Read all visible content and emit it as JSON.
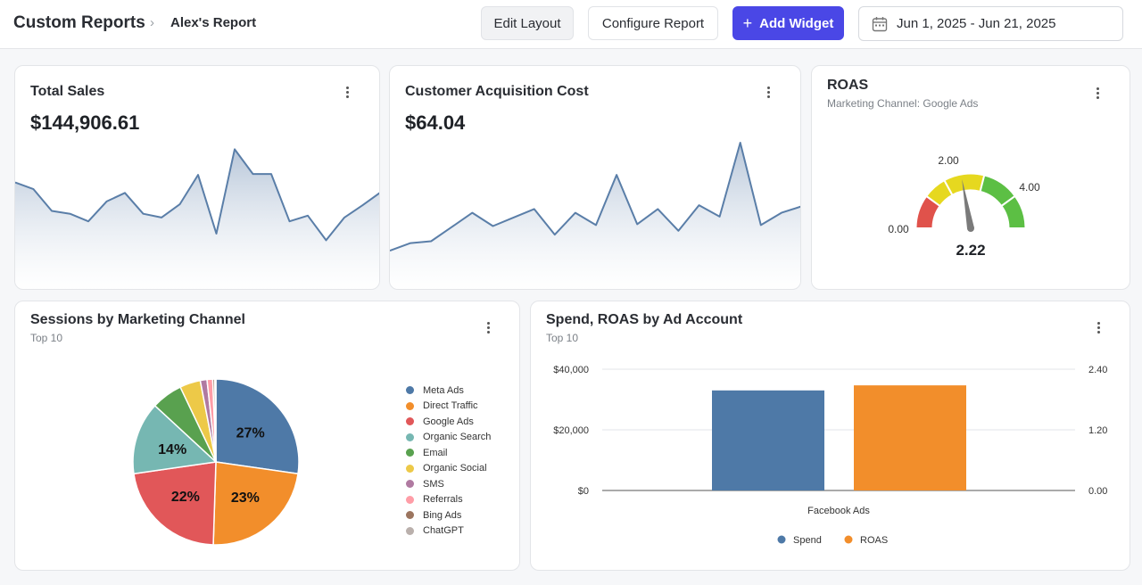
{
  "header": {
    "breadcrumb_root": "Custom Reports",
    "breadcrumb_sep": "›",
    "breadcrumb_leaf": "Alex's Report",
    "edit_layout": "Edit Layout",
    "configure_report": "Configure Report",
    "add_widget": "Add Widget",
    "add_widget_icon": "+",
    "date_range": "Jun 1, 2025 - Jun 21, 2025",
    "accent": "#4a47e6"
  },
  "widgets": {
    "total_sales": {
      "title": "Total Sales",
      "value": "$144,906.61",
      "series": [
        8.6,
        7.9,
        5.6,
        5.3,
        4.5,
        6.6,
        7.5,
        5.3,
        4.9,
        6.3,
        9.4,
        3.2,
        12.1,
        9.5,
        9.5,
        4.5,
        5.1,
        2.5,
        4.9,
        6.2,
        7.6
      ]
    },
    "cac": {
      "title": "Customer Acquisition Cost",
      "value": "$64.04",
      "series": [
        1.4,
        2.2,
        2.4,
        3.9,
        5.4,
        4.0,
        4.9,
        5.8,
        3.1,
        5.4,
        4.1,
        9.4,
        4.2,
        5.8,
        3.5,
        6.2,
        5.0,
        12.8,
        4.1,
        5.4,
        6.1
      ]
    },
    "roas": {
      "title": "ROAS",
      "subtitle": "Marketing Channel: Google Ads",
      "value": "2.22",
      "labels": [
        "0.00",
        "2.00",
        "4.00"
      ],
      "gauge_max": 5.0,
      "needle_value": 2.22,
      "colors": [
        "#e0524b",
        "#e6d81f",
        "#5cbf44"
      ]
    },
    "sessions": {
      "title": "Sessions by Marketing Channel",
      "subtitle": "Top 10"
    },
    "spend_roas": {
      "title": "Spend, ROAS by Ad Account",
      "subtitle": "Top 10"
    }
  },
  "chart_data": [
    {
      "type": "pie",
      "title": "Sessions by Marketing Channel",
      "categories": [
        "Meta Ads",
        "Direct Traffic",
        "Google Ads",
        "Organic Search",
        "Email",
        "Organic Social",
        "SMS",
        "Referrals",
        "Bing Ads",
        "ChatGPT"
      ],
      "values": [
        27,
        23,
        22,
        14,
        6,
        4,
        1.3,
        1.1,
        0.4,
        0.2
      ],
      "value_labels": [
        "27%",
        "23%",
        "22%",
        "14%",
        "",
        "",
        "",
        "",
        "",
        ""
      ],
      "colors": [
        "#4e79a7",
        "#f28e2b",
        "#e15759",
        "#76b7b2",
        "#59a14f",
        "#edc948",
        "#b07aa1",
        "#ff9da7",
        "#9c755f",
        "#bab0ac"
      ],
      "legend": "right"
    },
    {
      "type": "bar",
      "title": "Spend, ROAS by Ad Account",
      "categories": [
        "Facebook Ads"
      ],
      "series": [
        {
          "name": "Spend",
          "values": [
            33000
          ],
          "color": "#4e79a7",
          "axis": "left"
        },
        {
          "name": "ROAS",
          "values": [
            2.08
          ],
          "color": "#f28e2b",
          "axis": "right"
        }
      ],
      "y_left": {
        "ticks": [
          "$40,000",
          "$20,000",
          "$0"
        ],
        "ylim": [
          0,
          40000
        ]
      },
      "y_right": {
        "ticks": [
          "2.40",
          "1.20",
          "0.00"
        ],
        "ylim": [
          0,
          2.4
        ]
      },
      "legend": "bottom"
    }
  ]
}
